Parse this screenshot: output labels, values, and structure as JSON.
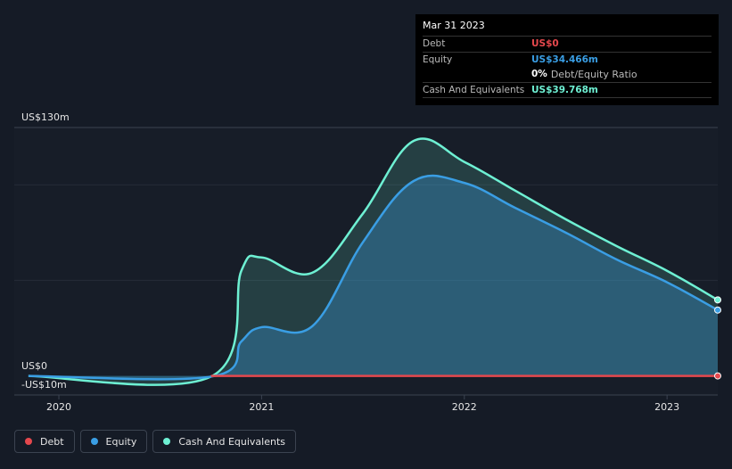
{
  "chart_data": {
    "type": "area",
    "title": "",
    "y_axis_labels": {
      "top": "US$130m",
      "zero": "US$0",
      "bottom": "-US$10m"
    },
    "ylim": [
      -10,
      130
    ],
    "x_ticks": [
      "2020",
      "2021",
      "2022",
      "2023"
    ],
    "x_range": [
      "2019-10",
      "2023-04"
    ],
    "series": [
      {
        "name": "Cash And Equivalents",
        "color": "#6ef0d3",
        "points": [
          [
            2019.85,
            0
          ],
          [
            2020.75,
            -0.4
          ],
          [
            2020.9,
            55
          ],
          [
            2021.0,
            62
          ],
          [
            2021.25,
            54
          ],
          [
            2021.5,
            85
          ],
          [
            2021.75,
            123
          ],
          [
            2022.0,
            112
          ],
          [
            2022.25,
            97
          ],
          [
            2022.5,
            82
          ],
          [
            2022.75,
            68
          ],
          [
            2023.0,
            55
          ],
          [
            2023.25,
            39.768
          ]
        ]
      },
      {
        "name": "Equity",
        "color": "#3a9ee4",
        "points": [
          [
            2019.85,
            0
          ],
          [
            2020.75,
            -0.4
          ],
          [
            2020.9,
            18
          ],
          [
            2021.0,
            25.5
          ],
          [
            2021.25,
            26
          ],
          [
            2021.5,
            70
          ],
          [
            2021.75,
            102
          ],
          [
            2022.0,
            101
          ],
          [
            2022.25,
            88
          ],
          [
            2022.5,
            75
          ],
          [
            2022.75,
            61
          ],
          [
            2023.0,
            49
          ],
          [
            2023.25,
            34.466
          ]
        ]
      },
      {
        "name": "Debt",
        "color": "#e5484d",
        "points": [
          [
            2020.75,
            0
          ],
          [
            2023.25,
            0
          ]
        ]
      }
    ]
  },
  "tooltip": {
    "date": "Mar 31 2023",
    "debt_label": "Debt",
    "debt_value": "US$0",
    "debt_color": "#e5484d",
    "equity_label": "Equity",
    "equity_value": "US$34.466m",
    "equity_color": "#3a9ee4",
    "ratio_value": "0%",
    "ratio_label": "Debt/Equity Ratio",
    "cash_label": "Cash And Equivalents",
    "cash_value": "US$39.768m",
    "cash_color": "#6ef0d3"
  },
  "legend": [
    {
      "label": "Debt",
      "color": "#e5484d"
    },
    {
      "label": "Equity",
      "color": "#3a9ee4"
    },
    {
      "label": "Cash And Equivalents",
      "color": "#6ef0d3"
    }
  ]
}
